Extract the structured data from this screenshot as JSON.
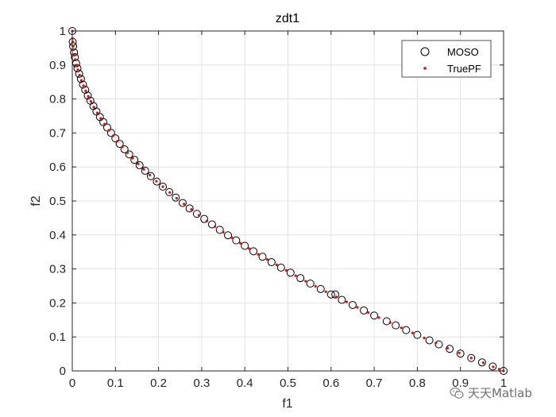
{
  "chart_data": {
    "type": "scatter",
    "title": "zdt1",
    "xlabel": "f1",
    "ylabel": "f2",
    "xlim": [
      0,
      1
    ],
    "ylim": [
      0,
      1
    ],
    "xticks": [
      0,
      0.1,
      0.2,
      0.3,
      0.4,
      0.5,
      0.6,
      0.7,
      0.8,
      0.9,
      1
    ],
    "yticks": [
      0,
      0.1,
      0.2,
      0.3,
      0.4,
      0.5,
      0.6,
      0.7,
      0.8,
      0.9,
      1
    ],
    "xtick_labels": [
      "0",
      "0.1",
      "0.2",
      "0.3",
      "0.4",
      "0.5",
      "0.6",
      "0.7",
      "0.8",
      "0.9",
      "1"
    ],
    "ytick_labels": [
      "0",
      "0.1",
      "0.2",
      "0.3",
      "0.4",
      "0.5",
      "0.6",
      "0.7",
      "0.8",
      "0.9",
      "1"
    ],
    "grid": true,
    "legend_position": "top-right",
    "series": [
      {
        "name": "MOSO",
        "marker": "open-circle",
        "color": "#000000",
        "x": [
          0,
          0.001,
          0.002,
          0.004,
          0.006,
          0.009,
          0.012,
          0.016,
          0.02,
          0.025,
          0.03,
          0.036,
          0.042,
          0.049,
          0.056,
          0.064,
          0.072,
          0.081,
          0.09,
          0.1,
          0.11,
          0.121,
          0.132,
          0.144,
          0.156,
          0.169,
          0.182,
          0.196,
          0.21,
          0.225,
          0.24,
          0.256,
          0.272,
          0.289,
          0.306,
          0.324,
          0.342,
          0.361,
          0.38,
          0.4,
          0.42,
          0.441,
          0.462,
          0.484,
          0.506,
          0.529,
          0.552,
          0.576,
          0.6,
          0.61,
          0.625,
          0.65,
          0.676,
          0.7,
          0.729,
          0.75,
          0.774,
          0.8,
          0.828,
          0.85,
          0.875,
          0.9,
          0.925,
          0.95,
          0.975,
          1
        ],
        "y": [
          1,
          0.968,
          0.955,
          0.937,
          0.923,
          0.905,
          0.89,
          0.874,
          0.859,
          0.842,
          0.827,
          0.81,
          0.795,
          0.779,
          0.763,
          0.747,
          0.732,
          0.716,
          0.7,
          0.684,
          0.668,
          0.652,
          0.637,
          0.621,
          0.605,
          0.589,
          0.573,
          0.557,
          0.542,
          0.526,
          0.51,
          0.494,
          0.478,
          0.462,
          0.447,
          0.431,
          0.415,
          0.399,
          0.384,
          0.368,
          0.352,
          0.336,
          0.32,
          0.304,
          0.289,
          0.273,
          0.257,
          0.241,
          0.225,
          0.225,
          0.209,
          0.194,
          0.178,
          0.163,
          0.146,
          0.134,
          0.12,
          0.106,
          0.09,
          0.078,
          0.065,
          0.051,
          0.038,
          0.025,
          0.013,
          0
        ]
      },
      {
        "name": "TruePF",
        "marker": "dot",
        "color": "#ff0000",
        "x": [
          0,
          0.0005,
          0.001,
          0.002,
          0.003,
          0.005,
          0.007,
          0.01,
          0.013,
          0.017,
          0.021,
          0.026,
          0.031,
          0.037,
          0.043,
          0.05,
          0.058,
          0.066,
          0.075,
          0.085,
          0.095,
          0.105,
          0.116,
          0.128,
          0.14,
          0.153,
          0.166,
          0.18,
          0.195,
          0.21,
          0.226,
          0.242,
          0.259,
          0.276,
          0.294,
          0.312,
          0.331,
          0.35,
          0.37,
          0.39,
          0.41,
          0.431,
          0.452,
          0.474,
          0.496,
          0.518,
          0.541,
          0.564,
          0.588,
          0.612,
          0.636,
          0.661,
          0.686,
          0.711,
          0.737,
          0.763,
          0.789,
          0.816,
          0.843,
          0.87,
          0.897,
          0.925,
          0.953,
          0.976,
          0.99,
          1
        ],
        "y": [
          1,
          0.978,
          0.968,
          0.955,
          0.945,
          0.929,
          0.916,
          0.9,
          0.886,
          0.87,
          0.855,
          0.839,
          0.824,
          0.808,
          0.793,
          0.776,
          0.759,
          0.743,
          0.726,
          0.708,
          0.692,
          0.676,
          0.659,
          0.642,
          0.626,
          0.609,
          0.593,
          0.576,
          0.558,
          0.542,
          0.525,
          0.508,
          0.491,
          0.475,
          0.458,
          0.441,
          0.425,
          0.408,
          0.392,
          0.376,
          0.36,
          0.343,
          0.328,
          0.312,
          0.296,
          0.28,
          0.264,
          0.249,
          0.233,
          0.218,
          0.203,
          0.187,
          0.172,
          0.157,
          0.142,
          0.127,
          0.112,
          0.097,
          0.082,
          0.067,
          0.053,
          0.038,
          0.024,
          0.012,
          0.005,
          0
        ]
      }
    ]
  },
  "watermark": {
    "text": "天天Matlab",
    "icon": "wechat-logo-icon"
  }
}
